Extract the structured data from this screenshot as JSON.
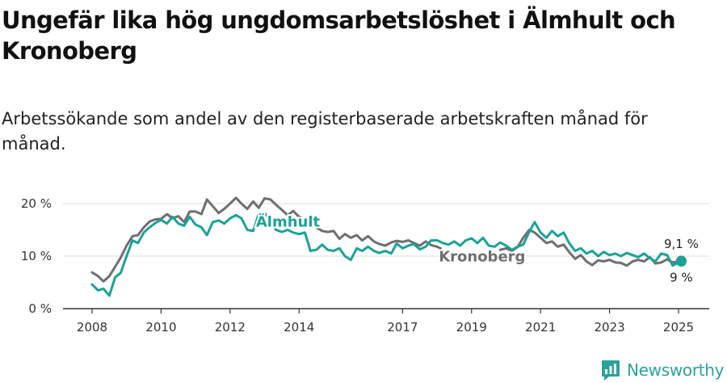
{
  "title": "Ungefär lika hög ungdomsarbetslöshet i Älmhult och Kronoberg",
  "subtitle": "Arbetssökande som andel av den registerbaserade arbetskraften månad för månad.",
  "brand": {
    "name": "Newsworthy"
  },
  "colors": {
    "almhult": "#1aa396",
    "kronoberg": "#6f6f73",
    "grid": "#dddddd",
    "axis": "#333333"
  },
  "chart_data": {
    "type": "line",
    "ylim": [
      0,
      20
    ],
    "yticks": [
      {
        "v": 0,
        "label": "0 %"
      },
      {
        "v": 10,
        "label": "10 %"
      },
      {
        "v": 20,
        "label": "20 %"
      }
    ],
    "xlim": [
      2008.0,
      2025.25
    ],
    "xticks": [
      {
        "v": 2008,
        "label": "2008"
      },
      {
        "v": 2010,
        "label": "2010"
      },
      {
        "v": 2012,
        "label": "2012"
      },
      {
        "v": 2014,
        "label": "2014"
      },
      {
        "v": 2017,
        "label": "2017"
      },
      {
        "v": 2019,
        "label": "2019"
      },
      {
        "v": 2021,
        "label": "2021"
      },
      {
        "v": 2023,
        "label": "2023"
      },
      {
        "v": 2025,
        "label": "2025"
      }
    ],
    "grid": true,
    "series": [
      {
        "name": "Kronoberg",
        "key": "kronoberg",
        "end_label": "9,1 %",
        "points": [
          [
            2008.0,
            6.9
          ],
          [
            2008.17,
            6.2
          ],
          [
            2008.33,
            5.2
          ],
          [
            2008.5,
            6.2
          ],
          [
            2008.67,
            8.0
          ],
          [
            2008.83,
            9.7
          ],
          [
            2009.0,
            12.0
          ],
          [
            2009.17,
            13.8
          ],
          [
            2009.33,
            14.0
          ],
          [
            2009.5,
            15.5
          ],
          [
            2009.67,
            16.6
          ],
          [
            2009.83,
            17.0
          ],
          [
            2010.0,
            17.1
          ],
          [
            2010.17,
            18.0
          ],
          [
            2010.33,
            17.2
          ],
          [
            2010.5,
            17.6
          ],
          [
            2010.67,
            16.5
          ],
          [
            2010.83,
            18.5
          ],
          [
            2011.0,
            18.5
          ],
          [
            2011.17,
            18.0
          ],
          [
            2011.33,
            20.8
          ],
          [
            2011.5,
            19.5
          ],
          [
            2011.67,
            18.2
          ],
          [
            2011.83,
            19.0
          ],
          [
            2012.0,
            20.0
          ],
          [
            2012.17,
            21.1
          ],
          [
            2012.33,
            20.0
          ],
          [
            2012.5,
            19.0
          ],
          [
            2012.67,
            20.4
          ],
          [
            2012.83,
            19.2
          ],
          [
            2013.0,
            21.0
          ],
          [
            2013.17,
            20.8
          ],
          [
            2013.33,
            19.8
          ],
          [
            2013.5,
            18.8
          ],
          [
            2013.67,
            17.8
          ],
          [
            2013.83,
            18.6
          ],
          [
            2014.0,
            17.5
          ],
          [
            2014.17,
            17.0
          ],
          [
            2014.33,
            16.5
          ],
          [
            2014.5,
            15.5
          ],
          [
            2014.67,
            14.8
          ],
          [
            2014.83,
            14.6
          ],
          [
            2015.0,
            14.8
          ],
          [
            2015.17,
            13.3
          ],
          [
            2015.33,
            14.2
          ],
          [
            2015.5,
            13.5
          ],
          [
            2015.67,
            14.0
          ],
          [
            2015.83,
            13.0
          ],
          [
            2016.0,
            13.8
          ],
          [
            2016.17,
            12.8
          ],
          [
            2016.33,
            12.3
          ],
          [
            2016.5,
            12.0
          ],
          [
            2016.67,
            12.6
          ],
          [
            2016.83,
            12.9
          ],
          [
            2017.0,
            12.7
          ],
          [
            2017.17,
            13.0
          ],
          [
            2017.33,
            12.5
          ],
          [
            2017.5,
            12.0
          ],
          [
            2017.67,
            12.8
          ],
          [
            2017.83,
            12.1
          ],
          [
            2018.0,
            11.8
          ],
          [
            2018.1,
            11.5
          ]
        ]
      },
      {
        "name": "Älmhult",
        "key": "almhult",
        "end_label": "9 %",
        "points": [
          [
            2008.0,
            4.6
          ],
          [
            2008.17,
            3.5
          ],
          [
            2008.33,
            3.8
          ],
          [
            2008.5,
            2.5
          ],
          [
            2008.67,
            6.0
          ],
          [
            2008.83,
            6.8
          ],
          [
            2009.0,
            10.0
          ],
          [
            2009.17,
            13.0
          ],
          [
            2009.33,
            12.5
          ],
          [
            2009.5,
            14.5
          ],
          [
            2009.67,
            15.5
          ],
          [
            2009.83,
            16.3
          ],
          [
            2010.0,
            16.9
          ],
          [
            2010.17,
            16.2
          ],
          [
            2010.33,
            17.5
          ],
          [
            2010.5,
            16.2
          ],
          [
            2010.67,
            15.8
          ],
          [
            2010.83,
            17.5
          ],
          [
            2011.0,
            16.0
          ],
          [
            2011.17,
            15.5
          ],
          [
            2011.33,
            14.0
          ],
          [
            2011.5,
            16.5
          ],
          [
            2011.67,
            16.8
          ],
          [
            2011.83,
            16.2
          ],
          [
            2012.0,
            17.2
          ],
          [
            2012.17,
            17.8
          ],
          [
            2012.33,
            17.2
          ],
          [
            2012.5,
            15.0
          ],
          [
            2012.67,
            14.8
          ],
          [
            2012.83,
            18.0
          ],
          [
            2013.0,
            18.2
          ],
          [
            2013.17,
            17.0
          ],
          [
            2013.33,
            15.0
          ],
          [
            2013.5,
            14.6
          ],
          [
            2013.67,
            15.0
          ],
          [
            2013.83,
            14.5
          ],
          [
            2014.0,
            14.2
          ],
          [
            2014.17,
            14.5
          ],
          [
            2014.33,
            11.0
          ],
          [
            2014.5,
            11.2
          ],
          [
            2014.67,
            12.2
          ],
          [
            2014.83,
            11.2
          ],
          [
            2015.0,
            11.0
          ],
          [
            2015.17,
            11.5
          ],
          [
            2015.33,
            10.0
          ],
          [
            2015.5,
            9.3
          ],
          [
            2015.67,
            11.5
          ],
          [
            2015.83,
            11.0
          ],
          [
            2016.0,
            11.8
          ],
          [
            2016.17,
            11.0
          ],
          [
            2016.33,
            10.6
          ],
          [
            2016.5,
            11.0
          ],
          [
            2016.67,
            10.5
          ],
          [
            2016.83,
            12.4
          ],
          [
            2017.0,
            11.5
          ],
          [
            2017.17,
            12.0
          ],
          [
            2017.33,
            12.3
          ],
          [
            2017.5,
            11.3
          ],
          [
            2017.67,
            11.8
          ],
          [
            2017.83,
            13.0
          ],
          [
            2018.0,
            13.0
          ],
          [
            2018.17,
            12.5
          ],
          [
            2018.33,
            12.2
          ],
          [
            2018.5,
            12.8
          ],
          [
            2018.67,
            12.0
          ],
          [
            2018.83,
            13.0
          ],
          [
            2019.0,
            13.4
          ],
          [
            2019.17,
            12.5
          ],
          [
            2019.33,
            13.5
          ],
          [
            2019.5,
            12.0
          ],
          [
            2019.67,
            11.8
          ],
          [
            2019.83,
            12.6
          ],
          [
            2020.0,
            12.0
          ],
          [
            2020.17,
            11.2
          ],
          [
            2020.33,
            11.8
          ],
          [
            2020.5,
            12.2
          ],
          [
            2020.67,
            14.6
          ],
          [
            2020.83,
            16.5
          ],
          [
            2021.0,
            14.5
          ],
          [
            2021.17,
            13.5
          ],
          [
            2021.33,
            14.8
          ],
          [
            2021.5,
            13.8
          ],
          [
            2021.67,
            14.5
          ],
          [
            2021.83,
            12.5
          ],
          [
            2022.0,
            11.0
          ],
          [
            2022.17,
            11.5
          ],
          [
            2022.33,
            10.5
          ],
          [
            2022.5,
            11.0
          ],
          [
            2022.67,
            10.0
          ],
          [
            2022.83,
            10.8
          ],
          [
            2023.0,
            10.2
          ],
          [
            2023.17,
            10.5
          ],
          [
            2023.33,
            10.0
          ],
          [
            2023.5,
            10.6
          ],
          [
            2023.67,
            10.2
          ],
          [
            2023.83,
            9.8
          ],
          [
            2024.0,
            10.5
          ],
          [
            2024.17,
            9.6
          ],
          [
            2024.33,
            9.0
          ],
          [
            2024.5,
            10.5
          ],
          [
            2024.67,
            10.2
          ],
          [
            2024.83,
            8.2
          ],
          [
            2025.0,
            8.8
          ],
          [
            2025.08,
            9.0
          ]
        ]
      },
      {
        "name": "Kronoberg",
        "key": "kronoberg",
        "points": [
          [
            2019.83,
            11.2
          ],
          [
            2020.0,
            11.5
          ],
          [
            2020.17,
            11.0
          ],
          [
            2020.33,
            11.7
          ],
          [
            2020.5,
            13.5
          ],
          [
            2020.67,
            15.0
          ],
          [
            2020.83,
            14.5
          ],
          [
            2021.0,
            13.5
          ],
          [
            2021.17,
            12.5
          ],
          [
            2021.33,
            12.8
          ],
          [
            2021.5,
            11.8
          ],
          [
            2021.67,
            12.2
          ],
          [
            2021.83,
            10.8
          ],
          [
            2022.0,
            9.5
          ],
          [
            2022.17,
            10.2
          ],
          [
            2022.33,
            9.0
          ],
          [
            2022.5,
            8.3
          ],
          [
            2022.67,
            9.2
          ],
          [
            2022.83,
            9.0
          ],
          [
            2023.0,
            9.3
          ],
          [
            2023.17,
            8.8
          ],
          [
            2023.33,
            8.7
          ],
          [
            2023.5,
            8.2
          ],
          [
            2023.67,
            9.0
          ],
          [
            2023.83,
            9.3
          ],
          [
            2024.0,
            9.0
          ],
          [
            2024.17,
            9.8
          ],
          [
            2024.33,
            8.6
          ],
          [
            2024.5,
            8.8
          ],
          [
            2024.67,
            9.4
          ],
          [
            2024.83,
            8.8
          ],
          [
            2025.0,
            9.0
          ],
          [
            2025.08,
            9.1
          ]
        ]
      }
    ],
    "labels": [
      {
        "text": "Älmhult",
        "key": "almhult",
        "x": 2012.75,
        "y": 15.6
      },
      {
        "text": "Kronoberg",
        "key": "kronoberg",
        "x": 2018.05,
        "y": 9.0
      }
    ]
  }
}
